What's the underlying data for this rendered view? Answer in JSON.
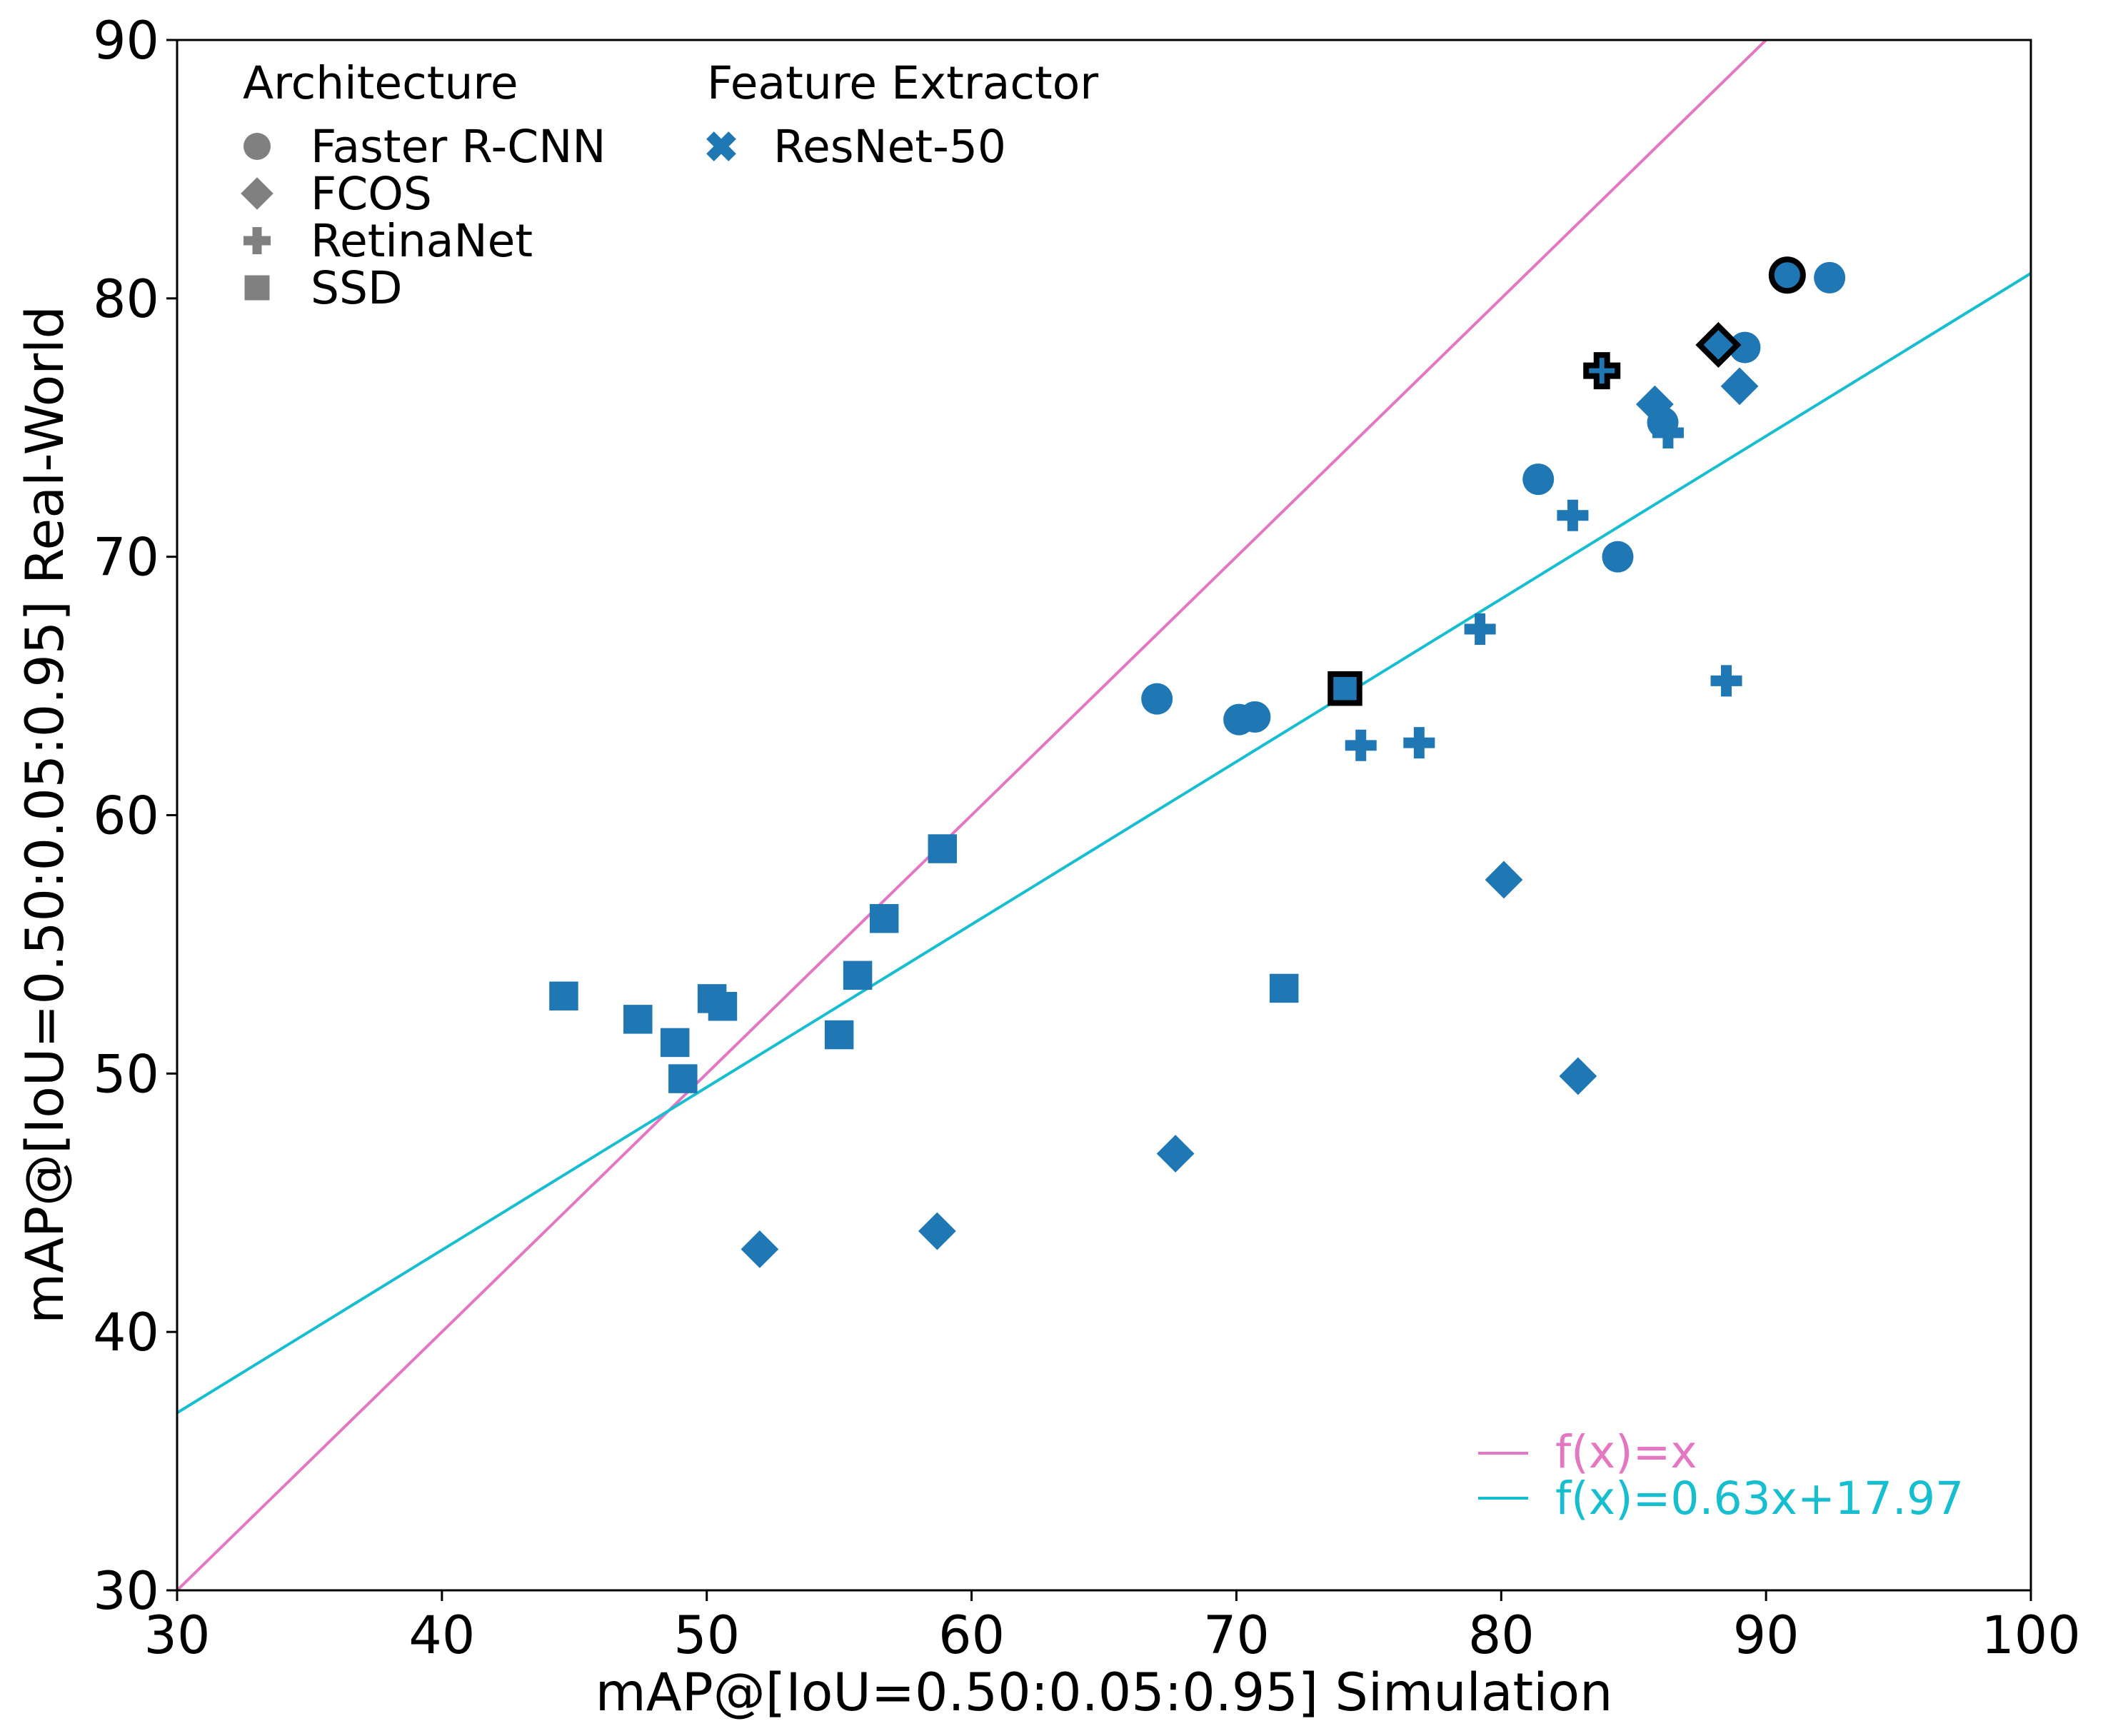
{
  "chart_data": {
    "type": "scatter",
    "title": "",
    "xlabel": "mAP@[IoU=0.50:0.05:0.95] Simulation",
    "ylabel": "mAP@[IoU=0.50:0.05:0.95] Real-World",
    "xlim": [
      30,
      100
    ],
    "ylim": [
      30,
      90
    ],
    "xticks": [
      30,
      40,
      50,
      60,
      70,
      80,
      90,
      100
    ],
    "yticks": [
      30,
      40,
      50,
      60,
      70,
      80,
      90
    ],
    "grid": false,
    "colors": {
      "points": "#1f77b4",
      "identity_line": "#e377c2",
      "fit_line": "#17becf",
      "legend_marker": "#808080",
      "highlight_edge": "#000000"
    },
    "legend_architecture": {
      "title": "Architecture",
      "placement": "top-left",
      "entries": [
        {
          "label": "Faster R-CNN",
          "marker": "circle"
        },
        {
          "label": "FCOS",
          "marker": "diamond"
        },
        {
          "label": "RetinaNet",
          "marker": "plus"
        },
        {
          "label": "SSD",
          "marker": "square"
        }
      ]
    },
    "legend_feature": {
      "title": "Feature Extractor",
      "placement": "top",
      "entries": [
        {
          "label": "ResNet-50",
          "marker": "x",
          "color": "#1f77b4"
        }
      ]
    },
    "legend_lines": {
      "placement": "bottom-right",
      "entries": [
        {
          "label": "f(x)=x",
          "color": "#e377c2"
        },
        {
          "label": "f(x)=0.63x+17.97",
          "color": "#17becf"
        }
      ]
    },
    "lines": [
      {
        "name": "identity",
        "slope": 1.0,
        "intercept": 0.0,
        "color": "#e377c2"
      },
      {
        "name": "fit",
        "slope": 0.63,
        "intercept": 17.97,
        "color": "#17becf"
      }
    ],
    "series": [
      {
        "name": "Faster R-CNN",
        "marker": "circle",
        "points": [
          {
            "x": 90.8,
            "y": 80.9,
            "highlight": true
          },
          {
            "x": 92.4,
            "y": 80.8
          },
          {
            "x": 89.2,
            "y": 78.1
          },
          {
            "x": 86.1,
            "y": 75.2
          },
          {
            "x": 81.4,
            "y": 73.0
          },
          {
            "x": 84.4,
            "y": 70.0
          },
          {
            "x": 67.0,
            "y": 64.5
          },
          {
            "x": 70.1,
            "y": 63.7
          },
          {
            "x": 70.7,
            "y": 63.8
          }
        ]
      },
      {
        "name": "FCOS",
        "marker": "diamond",
        "points": [
          {
            "x": 88.2,
            "y": 78.2,
            "highlight": true
          },
          {
            "x": 85.8,
            "y": 75.9
          },
          {
            "x": 89.0,
            "y": 76.6
          },
          {
            "x": 80.1,
            "y": 57.5
          },
          {
            "x": 82.9,
            "y": 49.9
          },
          {
            "x": 67.7,
            "y": 46.9
          },
          {
            "x": 58.7,
            "y": 43.9
          },
          {
            "x": 52.0,
            "y": 43.2
          }
        ]
      },
      {
        "name": "RetinaNet",
        "marker": "plus",
        "points": [
          {
            "x": 83.8,
            "y": 77.2,
            "highlight": true
          },
          {
            "x": 86.3,
            "y": 74.8
          },
          {
            "x": 82.7,
            "y": 71.6
          },
          {
            "x": 79.2,
            "y": 67.2
          },
          {
            "x": 88.5,
            "y": 65.2
          },
          {
            "x": 74.7,
            "y": 62.7
          },
          {
            "x": 76.9,
            "y": 62.8
          }
        ]
      },
      {
        "name": "SSD",
        "marker": "square",
        "points": [
          {
            "x": 74.1,
            "y": 64.9,
            "highlight": true
          },
          {
            "x": 58.9,
            "y": 58.7
          },
          {
            "x": 56.7,
            "y": 56.0
          },
          {
            "x": 55.7,
            "y": 53.8
          },
          {
            "x": 71.8,
            "y": 53.3
          },
          {
            "x": 44.6,
            "y": 53.0
          },
          {
            "x": 47.4,
            "y": 52.1
          },
          {
            "x": 50.2,
            "y": 52.9
          },
          {
            "x": 50.6,
            "y": 52.6
          },
          {
            "x": 48.8,
            "y": 51.2
          },
          {
            "x": 55.0,
            "y": 51.5
          },
          {
            "x": 49.1,
            "y": 49.8
          }
        ]
      }
    ]
  }
}
